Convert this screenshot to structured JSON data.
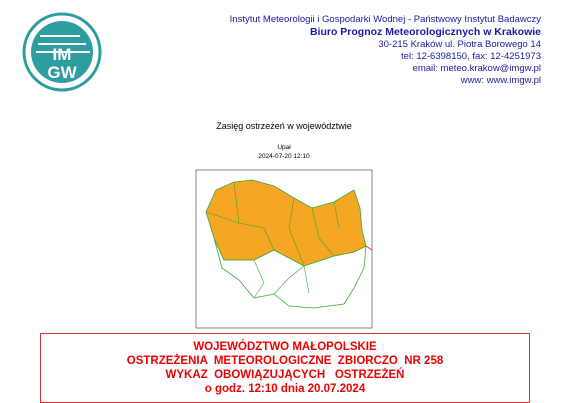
{
  "logo": {
    "line1": "IM",
    "line2": "GW"
  },
  "header": {
    "lines": [
      "Instytut Meteorologii i Gospodarki Wodnej - Państwowy Instytut Badawczy",
      "Biuro Prognoz Meteorologicznych w Krakowie",
      "30-215 Kraków ul. Piotra Borowego 14",
      "tel: 12-6398150, fax: 12-4251973",
      "email: meteo.krakow@imgw.pl",
      "www: www.imgw.pl"
    ]
  },
  "map": {
    "title": "Zasięg ostrzeżeń w województwie",
    "phenomenon": "Upał",
    "timestamp": "2024-07-20 12:10"
  },
  "notice": {
    "lines": [
      "WOJEWÓDZTWO MAŁOPOLSKIE",
      "OSTRZEŻENIA  METEOROLOGICZNE  ZBIORCZO  NR 258",
      "WYKAZ  OBOWIĄZUJĄCYCH   OSTRZEŻEŃ",
      "o godz. 12:10 dnia 20.07.2024"
    ]
  }
}
